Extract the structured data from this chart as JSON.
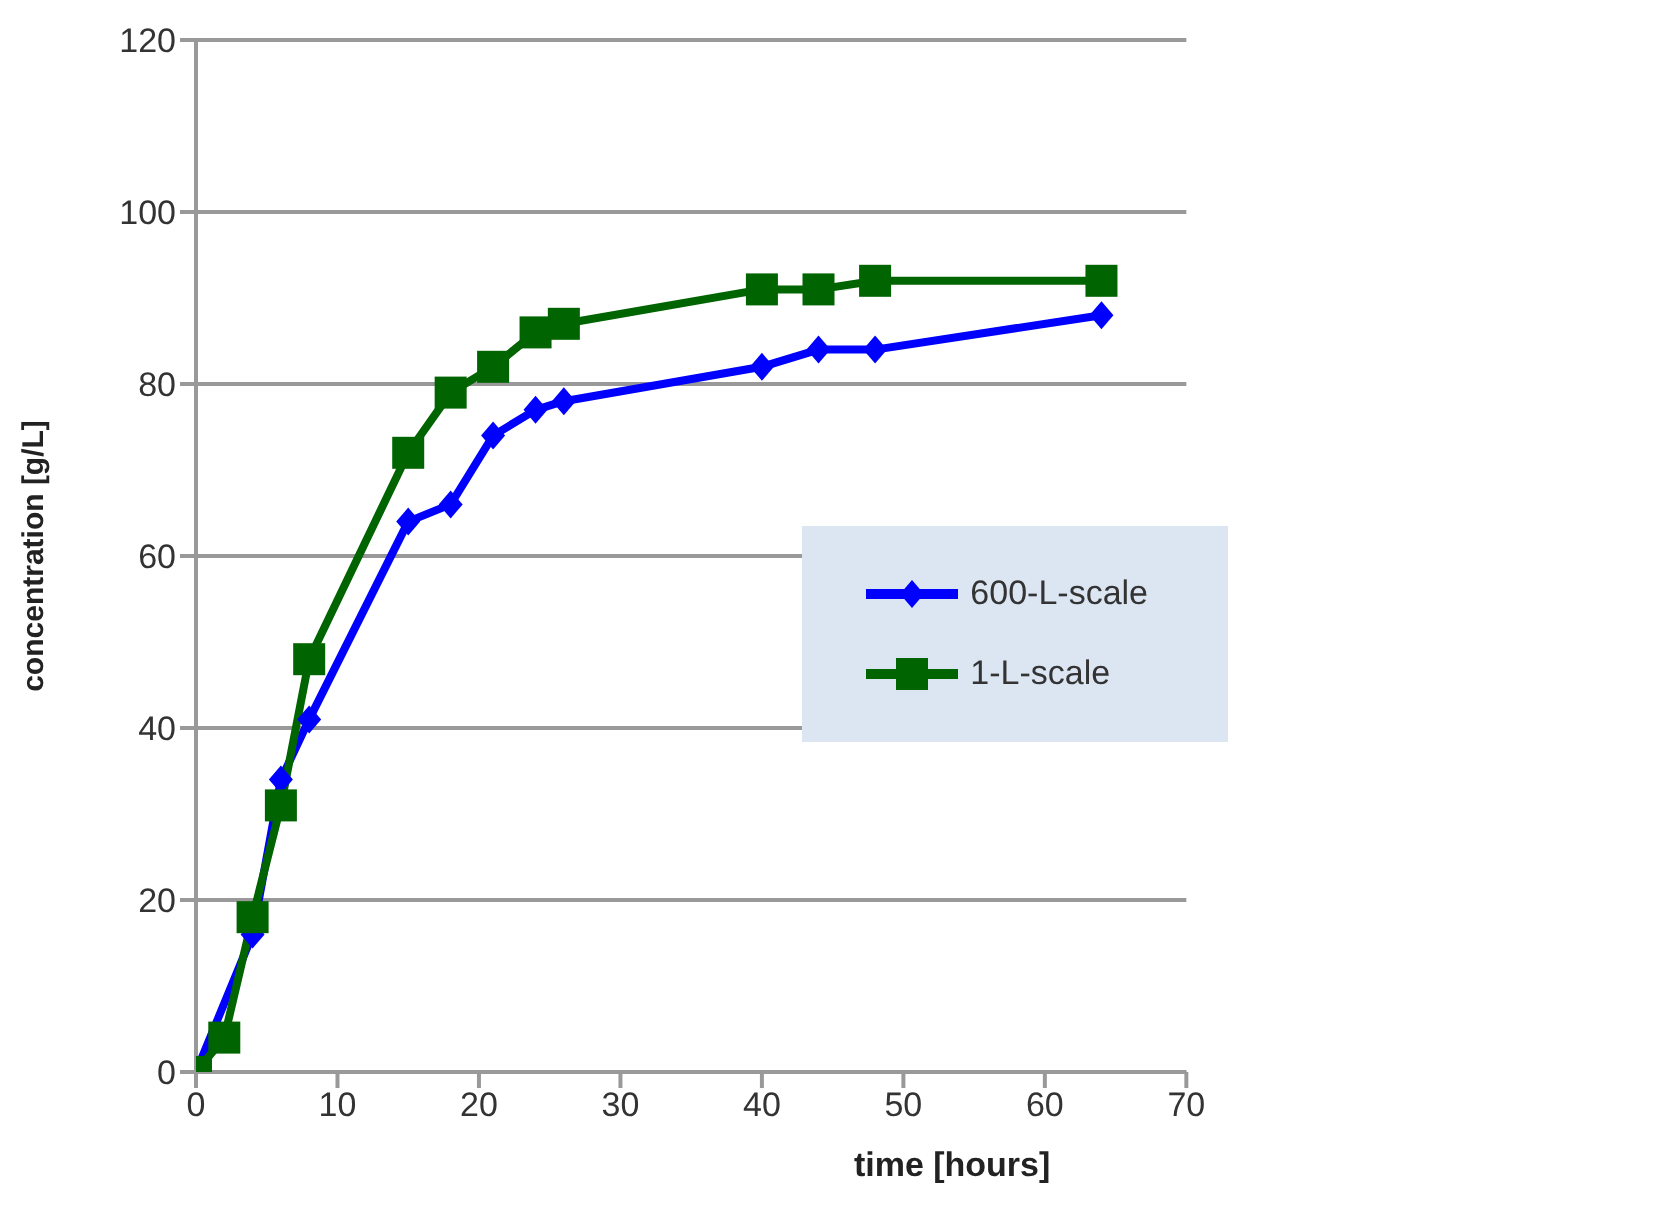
{
  "chart_data": {
    "type": "line",
    "xlabel": "time [hours]",
    "ylabel": "concentration [g/L]",
    "x": [
      0,
      2,
      4,
      6,
      8,
      15,
      18,
      21,
      24,
      26,
      40,
      44,
      48,
      64
    ],
    "series": [
      {
        "name": "600-L-scale",
        "color": "#0000ff",
        "marker": "diamond",
        "values": [
          0,
          null,
          16,
          34,
          41,
          64,
          66,
          74,
          77,
          78,
          82,
          84,
          84,
          88
        ]
      },
      {
        "name": "1-L-scale",
        "color": "#006400",
        "marker": "square",
        "values": [
          0,
          4,
          18,
          31,
          48,
          72,
          79,
          82,
          86,
          87,
          91,
          91,
          92,
          92
        ]
      }
    ],
    "xlim": [
      0,
      70
    ],
    "xticks": [
      0,
      10,
      20,
      30,
      40,
      50,
      60,
      70
    ],
    "ylim": [
      0,
      120
    ],
    "yticks": [
      0,
      20,
      40,
      60,
      80,
      100,
      120
    ],
    "grid": "y",
    "legend": "right",
    "line_style": "solid"
  }
}
